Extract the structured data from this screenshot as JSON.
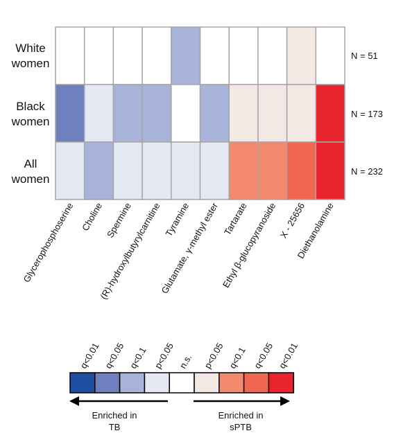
{
  "chart_data": {
    "type": "heatmap",
    "rows": [
      {
        "label_lines": [
          "White",
          "women"
        ],
        "n": "N = 51"
      },
      {
        "label_lines": [
          "Black",
          "women"
        ],
        "n": "N = 173"
      },
      {
        "label_lines": [
          "All",
          "women"
        ],
        "n": "N = 232"
      }
    ],
    "columns": [
      "Glycerophosphoserine",
      "Choline",
      "Spermine",
      "(R)-hydroxylbutyrylcarnitine",
      "Tyramine",
      "Glutamate, γ-methyl ester",
      "Tartarate",
      "Ethyl β-glucopyranoside",
      "X - 25656",
      "Diethanolamine"
    ],
    "levels": [
      {
        "label": "q<0.01",
        "color": "#1f4fa0"
      },
      {
        "label": "q<0.05",
        "color": "#6f80bf"
      },
      {
        "label": "q<0.1",
        "color": "#a8b3da"
      },
      {
        "label": "p<0.05",
        "color": "#e4e8f2"
      },
      {
        "label": "n.s.",
        "color": "#ffffff"
      },
      {
        "label": "p<0.05",
        "color": "#f3e8e3"
      },
      {
        "label": "q<0.1",
        "color": "#f28b6e"
      },
      {
        "label": "q<0.05",
        "color": "#ef6750"
      },
      {
        "label": "q<0.01",
        "color": "#e9242d"
      }
    ],
    "cells": [
      [
        4,
        4,
        4,
        4,
        2,
        4,
        4,
        4,
        5,
        4
      ],
      [
        1,
        3,
        2,
        2,
        4,
        2,
        5,
        5,
        5,
        8
      ],
      [
        3,
        2,
        3,
        3,
        3,
        3,
        6,
        6,
        7,
        8
      ]
    ]
  },
  "legend": {
    "left_arrow_lines": [
      "Enriched in",
      "TB"
    ],
    "right_arrow_lines": [
      "Enriched in",
      "sPTB"
    ]
  }
}
